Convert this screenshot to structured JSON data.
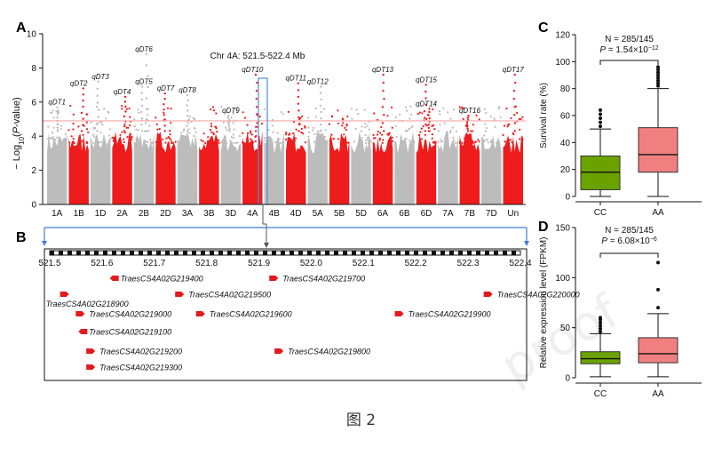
{
  "caption": "图 2",
  "watermark": "proof",
  "panelA": {
    "letter": "A",
    "ylabel": "− Log10(P-value)",
    "ylabel_main": "− Log",
    "ylabel_sub": "10",
    "ylabel_paren": "(",
    "ylabel_p": "P",
    "ylabel_rest": "-value)",
    "region_label": "Chr 4A: 521.5-522.4 Mb",
    "yticks": [
      "0",
      "2",
      "4",
      "6",
      "8",
      "10"
    ],
    "chromosomes": [
      "1A",
      "1B",
      "1D",
      "2A",
      "2B",
      "2D",
      "3A",
      "3B",
      "3D",
      "4A",
      "4B",
      "4D",
      "5A",
      "5B",
      "5D",
      "6A",
      "6B",
      "6D",
      "7A",
      "7B",
      "7D",
      "Un"
    ],
    "threshold": 4.9,
    "qtl_labels": [
      {
        "name": "qDT1",
        "chrom": "1A",
        "y": 5.7
      },
      {
        "name": "qDT2",
        "chrom": "1B",
        "y": 6.8
      },
      {
        "name": "qDT3",
        "chrom": "1D",
        "y": 7.2
      },
      {
        "name": "qDT4",
        "chrom": "2A",
        "y": 6.3
      },
      {
        "name": "qDT5",
        "chrom": "2B",
        "y": 6.9
      },
      {
        "name": "qDT6",
        "chrom": "2B",
        "y": 8.8
      },
      {
        "name": "qDT7",
        "chrom": "2D",
        "y": 6.5
      },
      {
        "name": "qDT8",
        "chrom": "3A",
        "y": 6.4
      },
      {
        "name": "qDT9",
        "chrom": "3D",
        "y": 5.2
      },
      {
        "name": "qDT10",
        "chrom": "4A",
        "y": 7.6
      },
      {
        "name": "qDT11",
        "chrom": "4D",
        "y": 7.1
      },
      {
        "name": "qDT12",
        "chrom": "5A",
        "y": 6.9
      },
      {
        "name": "qDT13",
        "chrom": "6A",
        "y": 7.6
      },
      {
        "name": "qDT14",
        "chrom": "6D",
        "y": 5.6
      },
      {
        "name": "qDT15",
        "chrom": "6D",
        "y": 7.0
      },
      {
        "name": "qDT16",
        "chrom": "7B",
        "y": 5.2
      },
      {
        "name": "qDT17",
        "chrom": "Un",
        "y": 7.6
      }
    ]
  },
  "panelB": {
    "letter": "B",
    "ticks": [
      "521.5",
      "521.6",
      "521.7",
      "521.8",
      "521.9",
      "522.0",
      "522.1",
      "522.2",
      "522.3",
      "522.4"
    ],
    "genes": [
      {
        "name": "TraesCS4A02G219400",
        "pos": 521.62,
        "row": 0,
        "dir": "left",
        "highlight": false
      },
      {
        "name": "TraesCS4A02G219700",
        "pos": 521.93,
        "row": 0,
        "dir": "right",
        "highlight": true
      },
      {
        "name": "TraesCS4A02G218900",
        "pos": 521.53,
        "row": 1,
        "dir": "right",
        "highlight": false
      },
      {
        "name": "TraesCS4A02G219500",
        "pos": 521.75,
        "row": 1,
        "dir": "right",
        "highlight": false
      },
      {
        "name": "TraesCS4A02G220000",
        "pos": 522.34,
        "row": 1,
        "dir": "right",
        "highlight": false
      },
      {
        "name": "TraesCS4A02G219000",
        "pos": 521.56,
        "row": 2,
        "dir": "right",
        "highlight": false
      },
      {
        "name": "TraesCS4A02G219600",
        "pos": 521.79,
        "row": 2,
        "dir": "right",
        "highlight": false
      },
      {
        "name": "TraesCS4A02G219900",
        "pos": 522.17,
        "row": 2,
        "dir": "right",
        "highlight": false
      },
      {
        "name": "TraesCS4A02G219100",
        "pos": 521.56,
        "row": 3,
        "dir": "left",
        "highlight": false
      },
      {
        "name": "TraesCS4A02G219200",
        "pos": 521.58,
        "row": 4,
        "dir": "right",
        "highlight": false
      },
      {
        "name": "TraesCS4A02G219800",
        "pos": 521.94,
        "row": 4,
        "dir": "right",
        "highlight": false
      },
      {
        "name": "TraesCS4A02G219300",
        "pos": 521.58,
        "row": 5,
        "dir": "right",
        "highlight": false
      }
    ]
  },
  "panelC": {
    "letter": "C",
    "n_text": "N = 285/145",
    "p_prefix": "P",
    "p_value": " = 1.54×10",
    "p_exp": "−12",
    "ylabel": "Survival rate (%)",
    "yticks": [
      "0",
      "20",
      "40",
      "60",
      "80",
      "100",
      "120"
    ],
    "groups": [
      {
        "name": "CC",
        "color": "#6aa300",
        "min": 0,
        "q1": 5,
        "median": 18,
        "q3": 30,
        "max": 50,
        "outliers": [
          52,
          55,
          58,
          61,
          64
        ]
      },
      {
        "name": "AA",
        "color": "#f08080",
        "min": 0,
        "q1": 18,
        "median": 31,
        "q3": 51,
        "max": 80,
        "outliers": [
          82,
          84,
          86,
          88,
          90,
          92,
          94,
          96
        ]
      }
    ]
  },
  "panelD": {
    "letter": "D",
    "n_text": "N = 285/145",
    "p_prefix": "P",
    "p_value": " = 6.08×10",
    "p_exp": "−6",
    "ylabel": "Relative expression level (FPKM)",
    "yticks": [
      "0",
      "50",
      "100",
      "150"
    ],
    "groups": [
      {
        "name": "CC",
        "color": "#6aa300",
        "min": 1,
        "q1": 14,
        "median": 19,
        "q3": 26,
        "max": 44,
        "outliers": [
          46,
          49,
          52,
          55,
          58,
          60
        ]
      },
      {
        "name": "AA",
        "color": "#f08080",
        "min": 1,
        "q1": 15,
        "median": 24,
        "q3": 40,
        "max": 64,
        "outliers": [
          70,
          88,
          115
        ]
      }
    ]
  }
}
